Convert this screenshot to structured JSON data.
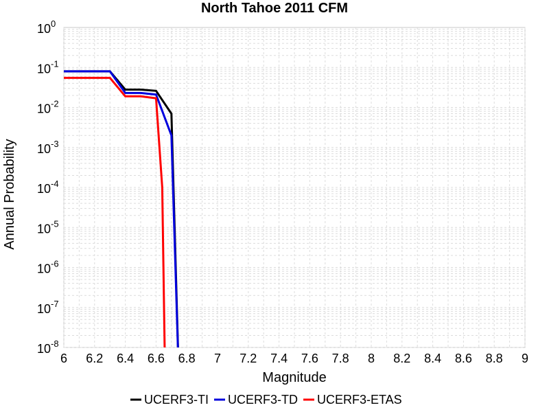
{
  "chart_data": {
    "type": "line",
    "title": "North Tahoe 2011 CFM",
    "xlabel": "Magnitude",
    "ylabel": "Annual Probability",
    "xlim": [
      6,
      9
    ],
    "ylim": [
      1e-08,
      1
    ],
    "yscale": "log",
    "grid": true,
    "legend_position": "bottom",
    "x_ticks": [
      "6",
      "6.2",
      "6.4",
      "6.6",
      "6.8",
      "7",
      "7.2",
      "7.4",
      "7.6",
      "7.8",
      "8",
      "8.2",
      "8.4",
      "8.6",
      "8.8",
      "9"
    ],
    "y_ticks": [
      {
        "base": "10",
        "exp": "0",
        "value": 1
      },
      {
        "base": "10",
        "exp": "-1",
        "value": 0.1
      },
      {
        "base": "10",
        "exp": "-2",
        "value": 0.01
      },
      {
        "base": "10",
        "exp": "-3",
        "value": 0.001
      },
      {
        "base": "10",
        "exp": "-4",
        "value": 0.0001
      },
      {
        "base": "10",
        "exp": "-5",
        "value": 1e-05
      },
      {
        "base": "10",
        "exp": "-6",
        "value": 1e-06
      },
      {
        "base": "10",
        "exp": "-7",
        "value": 1e-07
      },
      {
        "base": "10",
        "exp": "-8",
        "value": 1e-08
      }
    ],
    "series": [
      {
        "name": "UCERF3-TI",
        "color": "#000000",
        "x": [
          6.0,
          6.3,
          6.4,
          6.5,
          6.6,
          6.7,
          6.75
        ],
        "y": [
          0.08,
          0.08,
          0.028,
          0.028,
          0.026,
          0.007,
          1e-09
        ]
      },
      {
        "name": "UCERF3-TD",
        "color": "#0000dd",
        "x": [
          6.0,
          6.3,
          6.4,
          6.5,
          6.6,
          6.7,
          6.75
        ],
        "y": [
          0.08,
          0.08,
          0.023,
          0.023,
          0.021,
          0.002,
          1e-09
        ]
      },
      {
        "name": "UCERF3-ETAS",
        "color": "#ff0000",
        "x": [
          6.0,
          6.3,
          6.4,
          6.5,
          6.6,
          6.64,
          6.66
        ],
        "y": [
          0.055,
          0.055,
          0.019,
          0.019,
          0.017,
          0.0001,
          1e-09
        ]
      }
    ]
  }
}
